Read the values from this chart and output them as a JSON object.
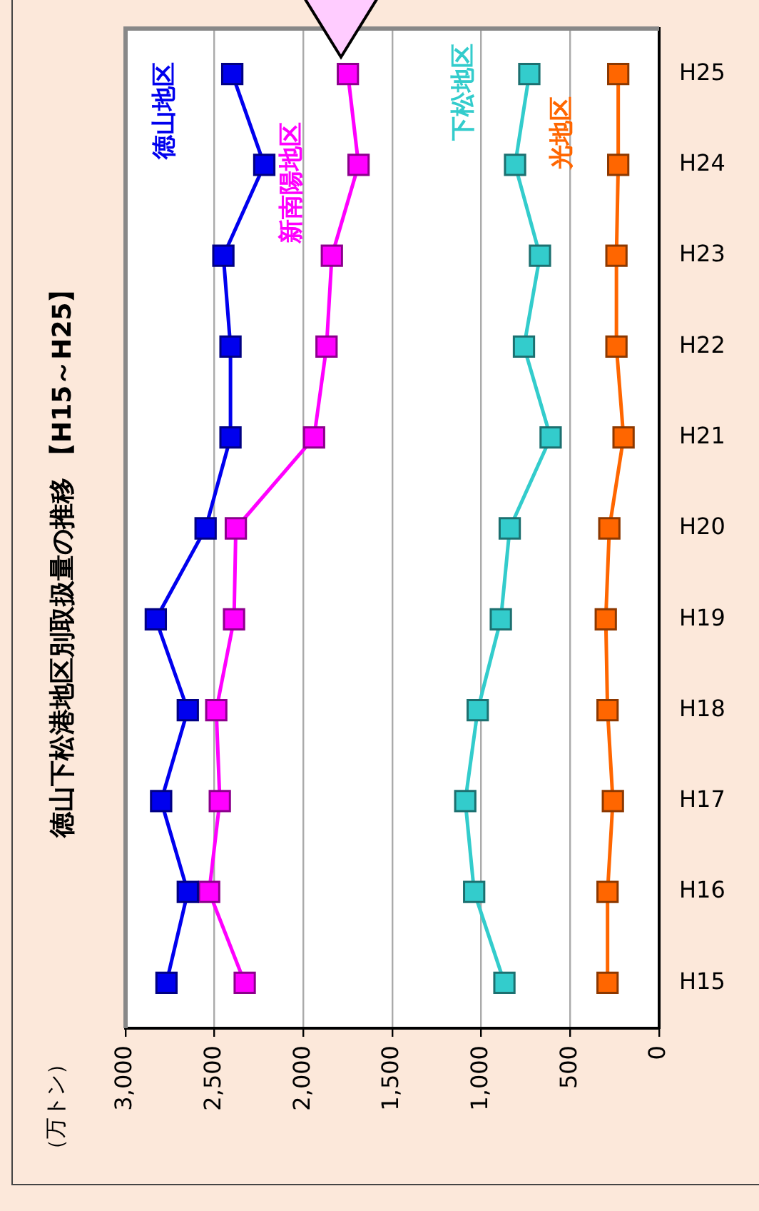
{
  "chart_data": {
    "type": "line",
    "title": "徳山下松港地区別取扱量の推移 【H15～H25】",
    "ylabel": "（万トン）",
    "categories": [
      "H25",
      "H24",
      "H23",
      "H22",
      "H21",
      "H20",
      "H19",
      "H18",
      "H17",
      "H16",
      "H15"
    ],
    "series": [
      {
        "name": "徳山地区",
        "color": "#0000ee",
        "values": [
          2400,
          2220,
          2450,
          2410,
          2410,
          2550,
          2830,
          2650,
          2800,
          2650,
          2770
        ]
      },
      {
        "name": "新南陽地区",
        "color": "#ff00ff",
        "values": [
          1750,
          1690,
          1840,
          1870,
          1940,
          2380,
          2390,
          2490,
          2470,
          2530,
          2330
        ]
      },
      {
        "name": "下松地区",
        "color": "#33cccc",
        "values": [
          730,
          810,
          670,
          760,
          610,
          840,
          890,
          1020,
          1090,
          1040,
          870
        ]
      },
      {
        "name": "光地区",
        "color": "#ff6600",
        "values": [
          230,
          230,
          240,
          240,
          200,
          280,
          300,
          290,
          260,
          290,
          290
        ]
      }
    ],
    "orientation": "horizontal",
    "xlim": [
      3000,
      0
    ],
    "xticks": [
      0,
      500,
      {
        "value": 1000,
        "label": "1,000"
      },
      {
        "value": 1500,
        "label": "1,500"
      },
      {
        "value": 2000,
        "label": "2,000"
      },
      {
        "value": 2500,
        "label": "2,500"
      },
      {
        "value": 3000,
        "label": "3,000"
      }
    ],
    "grid": "x",
    "legend": false,
    "marker": "square",
    "line_style": "solid"
  }
}
